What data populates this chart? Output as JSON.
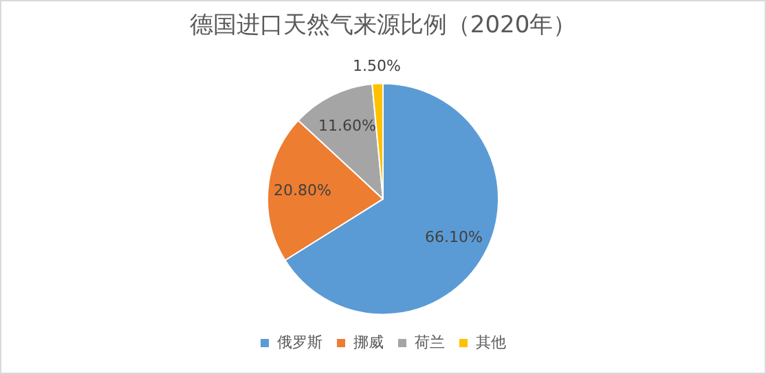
{
  "chart_data": {
    "type": "pie",
    "title": "德国进口天然气来源比例（2020年）",
    "categories": [
      "俄罗斯",
      "挪威",
      "荷兰",
      "其他"
    ],
    "values": [
      66.1,
      20.8,
      11.6,
      1.5
    ],
    "colors": [
      "#5b9bd5",
      "#ed7d31",
      "#a5a5a5",
      "#ffc000"
    ],
    "value_labels": [
      "66.10%",
      "20.80%",
      "11.60%",
      "1.50%"
    ],
    "legend": "bottom"
  }
}
